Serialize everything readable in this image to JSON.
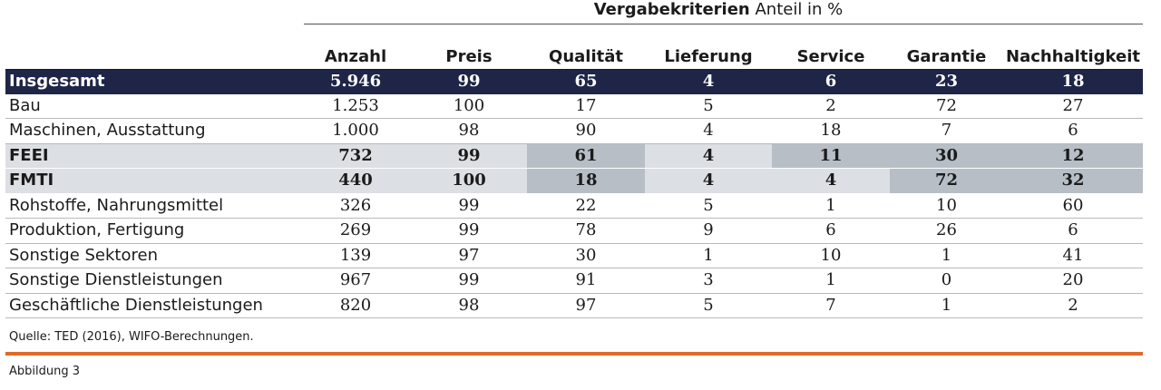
{
  "title": {
    "bold": "Vergabekriterien",
    "rest": " Anteil in %"
  },
  "columns": [
    "",
    "Anzahl",
    "Preis",
    "Qualität",
    "Lieferung",
    "Service",
    "Garantie",
    "Nachhaltigkeit"
  ],
  "rows": [
    {
      "label": "Insgesamt",
      "values": [
        "5.946",
        "99",
        "65",
        "4",
        "6",
        "23",
        "18"
      ]
    },
    {
      "label": "Bau",
      "values": [
        "1.253",
        "100",
        "17",
        "5",
        "2",
        "72",
        "27"
      ]
    },
    {
      "label": "Maschinen, Ausstattung",
      "values": [
        "1.000",
        "98",
        "90",
        "4",
        "18",
        "7",
        "6"
      ]
    },
    {
      "label": "FEEI",
      "values": [
        "732",
        "99",
        "61",
        "4",
        "11",
        "30",
        "12"
      ]
    },
    {
      "label": "FMTI",
      "values": [
        "440",
        "100",
        "18",
        "4",
        "4",
        "72",
        "32"
      ]
    },
    {
      "label": "Rohstoffe, Nahrungsmittel",
      "values": [
        "326",
        "99",
        "22",
        "5",
        "1",
        "10",
        "60"
      ]
    },
    {
      "label": "Produktion, Fertigung",
      "values": [
        "269",
        "99",
        "78",
        "9",
        "6",
        "26",
        "6"
      ]
    },
    {
      "label": "Sonstige Sektoren",
      "values": [
        "139",
        "97",
        "30",
        "1",
        "10",
        "1",
        "41"
      ]
    },
    {
      "label": "Sonstige Dienstleistungen",
      "values": [
        "967",
        "99",
        "91",
        "3",
        "1",
        "0",
        "20"
      ]
    },
    {
      "label": "Geschäftliche Dienstleistungen",
      "values": [
        "820",
        "98",
        "97",
        "5",
        "7",
        "1",
        "2"
      ]
    }
  ],
  "source": "Quelle: TED (2016), WIFO-Berechnungen.",
  "caption": "Abbildung 3",
  "colors": {
    "total_bg": "#1f2547",
    "highlight_bg": "#dcdfe3",
    "highlight_dark": "#b7bec6",
    "accent": "#e06a2a"
  }
}
